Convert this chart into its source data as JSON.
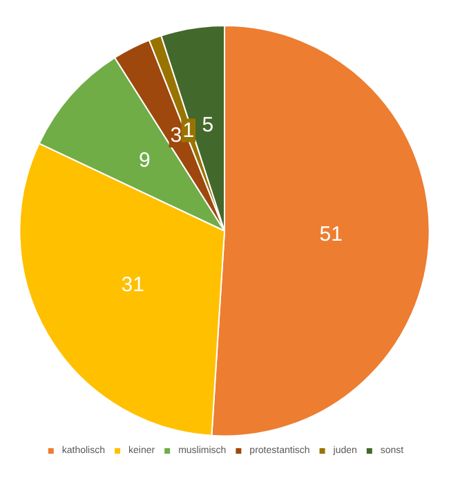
{
  "chart_data": {
    "type": "pie",
    "categories": [
      "katholisch",
      "keiner",
      "muslimisch",
      "protestantisch",
      "juden",
      "sonst"
    ],
    "values": [
      51,
      31,
      9,
      3,
      1,
      5
    ],
    "colors": [
      "#ed7d31",
      "#ffc000",
      "#70ad47",
      "#9e480e",
      "#997300",
      "#43682b"
    ],
    "data_labels": true,
    "legend": "bottom"
  }
}
